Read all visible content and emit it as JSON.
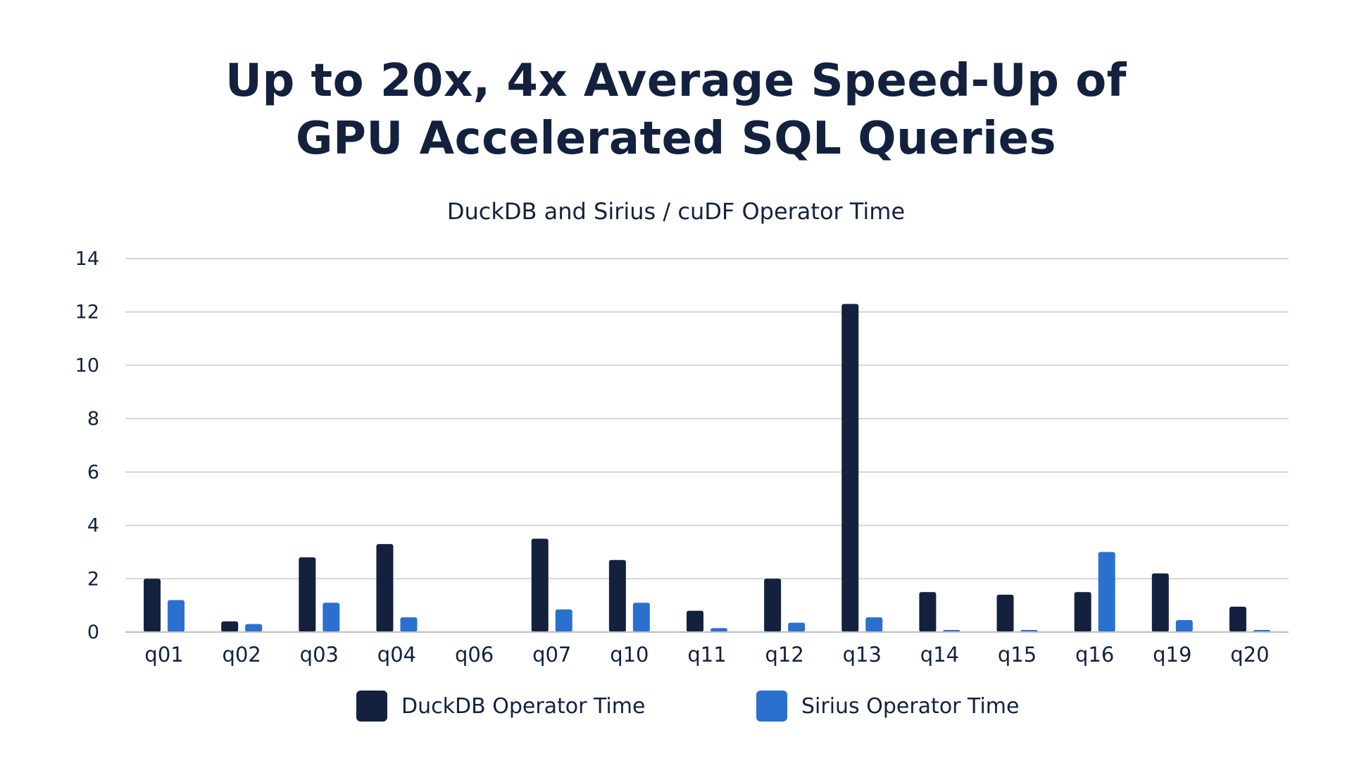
{
  "title_lines": [
    "Up to 20x, 4x Average Speed-Up of",
    "GPU Accelerated SQL Queries"
  ],
  "colors": {
    "duckdb": "#13213f",
    "sirius": "#2b70cf",
    "grid": "#d4d4d4",
    "text": "#13213f"
  },
  "chart_data": {
    "type": "bar",
    "title": "DuckDB and Sirius / cuDF Operator Time",
    "xlabel": "",
    "ylabel": "",
    "categories": [
      "q01",
      "q02",
      "q03",
      "q04",
      "q06",
      "q07",
      "q10",
      "q11",
      "q12",
      "q13",
      "q14",
      "q15",
      "q16",
      "q19",
      "q20"
    ],
    "series": [
      {
        "name": "DuckDB Operator Time",
        "color": "#13213f",
        "values": [
          2.0,
          0.4,
          2.8,
          3.3,
          0,
          3.5,
          2.7,
          0.8,
          2.0,
          12.3,
          1.5,
          1.4,
          1.5,
          2.2,
          0.95
        ]
      },
      {
        "name": "Sirius Operator Time",
        "color": "#2b70cf",
        "values": [
          1.2,
          0.3,
          1.1,
          0.55,
          0,
          0.85,
          1.1,
          0.15,
          0.35,
          0.55,
          0.08,
          0.08,
          3.0,
          0.45,
          0.08
        ]
      }
    ],
    "ylim": [
      0,
      14
    ],
    "yticks": [
      0,
      2,
      4,
      6,
      8,
      10,
      12,
      14
    ],
    "grid": true,
    "legend": "bottom"
  }
}
